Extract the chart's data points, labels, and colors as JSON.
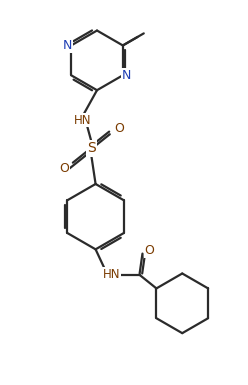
{
  "bg_color": "#ffffff",
  "line_color": "#2b2b2b",
  "atom_color_N": "#1e3eb5",
  "atom_color_O": "#7a3b00",
  "atom_color_S": "#7a3b00",
  "atom_color_HN": "#7a3b00",
  "line_width": 1.6,
  "figsize": [
    2.48,
    3.85
  ],
  "dpi": 100,
  "xlim": [
    0,
    8.5
  ],
  "ylim": [
    0,
    13.5
  ]
}
